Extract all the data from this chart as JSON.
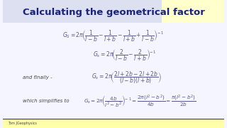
{
  "title": "Calculating the geometrical factor",
  "title_color": "#1a237e",
  "title_fontsize": 9.5,
  "bg_color": "#f5f5ff",
  "header_bg": "#dce0f0",
  "yellow_bg": "#ffffcc",
  "footer": "Tom JGeophysics",
  "formula_color": "#5a5a8a",
  "label_color": "#444444"
}
